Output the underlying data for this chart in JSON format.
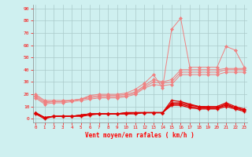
{
  "x": [
    0,
    1,
    2,
    3,
    4,
    5,
    6,
    7,
    8,
    9,
    10,
    11,
    12,
    13,
    14,
    15,
    16,
    17,
    18,
    19,
    20,
    21,
    22,
    23
  ],
  "line_spike": [
    20,
    15,
    15,
    15,
    15,
    16,
    19,
    20,
    20,
    20,
    21,
    24,
    29,
    36,
    25,
    73,
    82,
    42,
    42,
    42,
    42,
    59,
    56,
    42
  ],
  "line_trend1": [
    19,
    14,
    14,
    14,
    15,
    16,
    18,
    19,
    19,
    19,
    20,
    22,
    27,
    32,
    30,
    32,
    40,
    40,
    40,
    40,
    40,
    41,
    41,
    41
  ],
  "line_trend2": [
    18,
    13,
    14,
    14,
    15,
    16,
    17,
    18,
    18,
    18,
    19,
    21,
    26,
    30,
    29,
    30,
    38,
    38,
    38,
    38,
    38,
    40,
    40,
    40
  ],
  "line_trend3": [
    17,
    12,
    13,
    13,
    14,
    15,
    16,
    17,
    17,
    17,
    18,
    20,
    25,
    28,
    27,
    28,
    36,
    36,
    36,
    36,
    36,
    38,
    38,
    38
  ],
  "line_dark1": [
    5,
    1,
    2,
    2,
    2,
    3,
    4,
    4,
    4,
    4,
    5,
    5,
    5,
    5,
    5,
    15,
    14,
    12,
    10,
    10,
    10,
    13,
    10,
    8
  ],
  "line_dark2": [
    5,
    1,
    2,
    2,
    2,
    3,
    4,
    4,
    4,
    4,
    5,
    5,
    5,
    5,
    5,
    13,
    13,
    11,
    10,
    9,
    9,
    12,
    9,
    7
  ],
  "line_dark3": [
    5,
    1,
    2,
    2,
    2,
    3,
    4,
    4,
    4,
    4,
    4,
    5,
    5,
    5,
    5,
    12,
    12,
    10,
    9,
    9,
    9,
    11,
    9,
    7
  ],
  "line_dark4": [
    4,
    0,
    2,
    2,
    2,
    2,
    3,
    4,
    4,
    4,
    4,
    4,
    5,
    5,
    5,
    11,
    11,
    9,
    8,
    8,
    8,
    10,
    8,
    6
  ],
  "color_light": "#f08080",
  "color_spike": "#f08080",
  "color_dark": "#dd0000",
  "bg_color": "#cff0f0",
  "grid_color": "#aacaca",
  "xlabel": "Vent moyen/en rafales ( km/h )",
  "ylabel_ticks": [
    0,
    10,
    20,
    30,
    40,
    50,
    60,
    70,
    80,
    90
  ],
  "ylim": [
    -3,
    93
  ],
  "xlim": [
    -0.3,
    23.3
  ]
}
